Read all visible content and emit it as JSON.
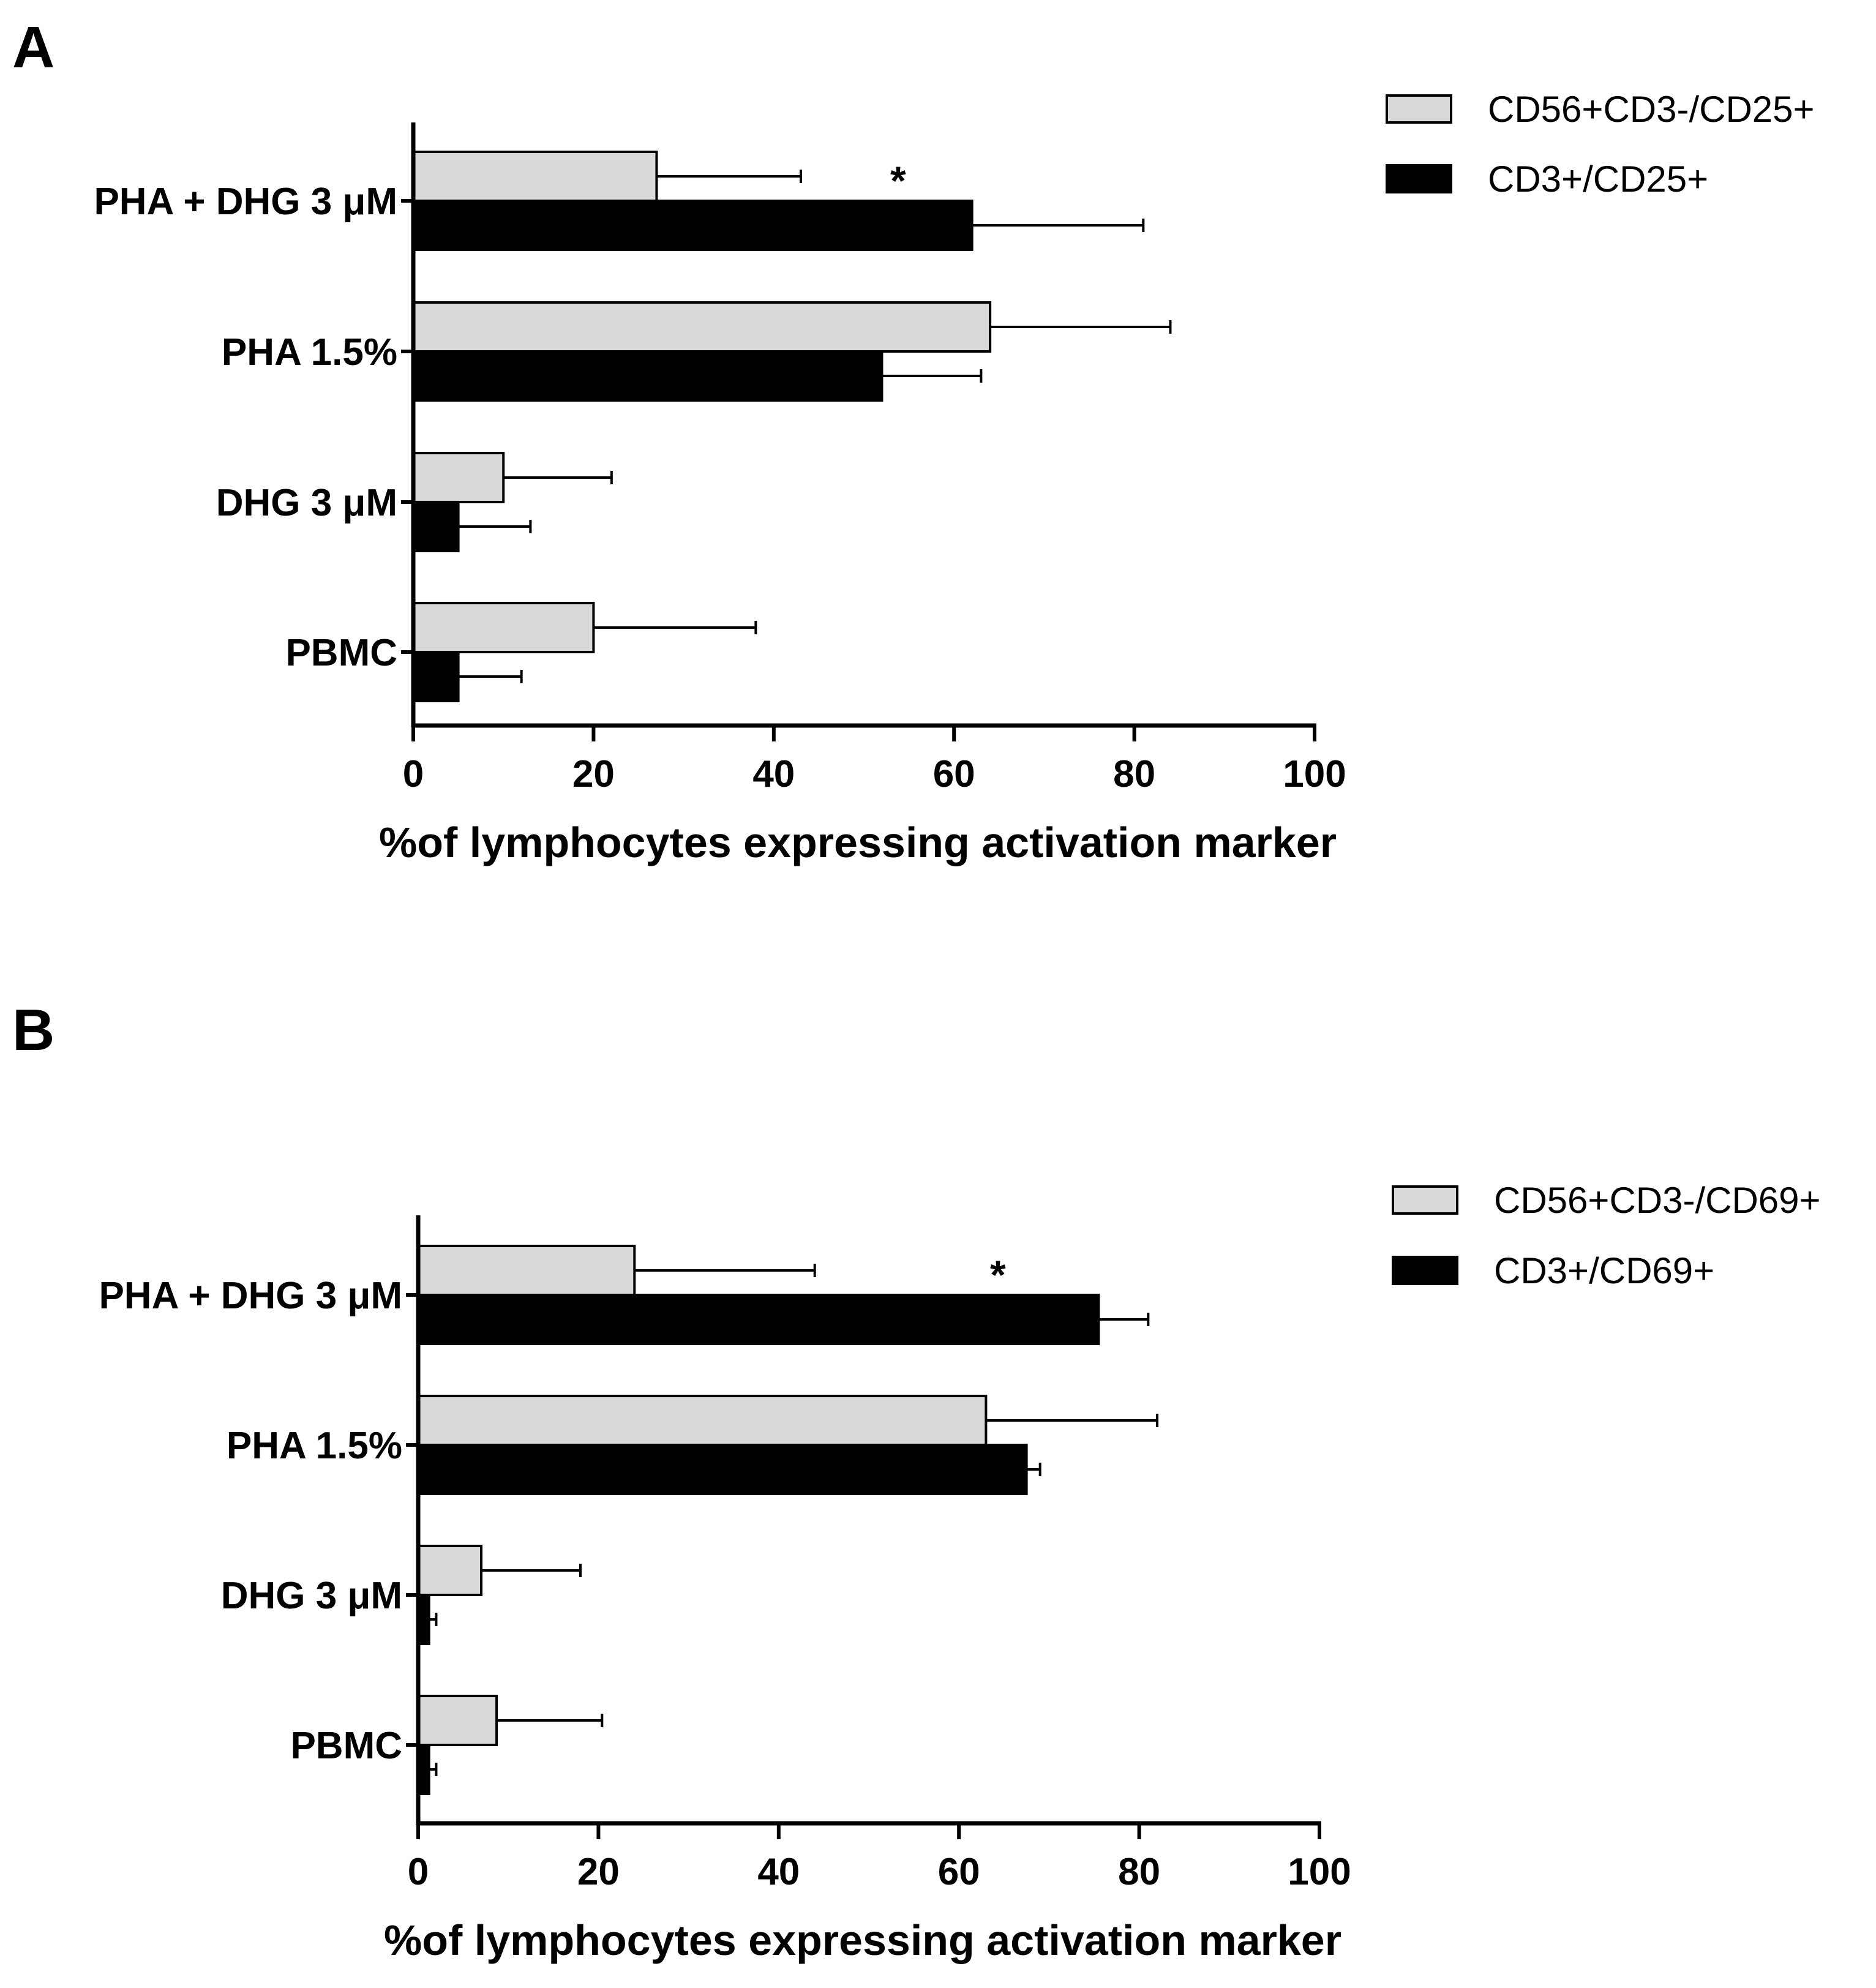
{
  "chart_data": [
    {
      "type": "bar",
      "orientation": "horizontal",
      "panel": "A",
      "categories": [
        "PHA + DHG 3 μM",
        "PHA 1.5%",
        "DHG 3 μM",
        "PBMC"
      ],
      "series": [
        {
          "name": "CD56+CD3-/CD25+",
          "color": "#d9d9d9",
          "values": [
            27,
            64,
            10,
            20
          ],
          "errors": [
            16,
            20,
            12,
            18
          ]
        },
        {
          "name": "CD3+/CD25+",
          "color": "#000000",
          "values": [
            62,
            52,
            5,
            5
          ],
          "errors": [
            19,
            11,
            8,
            7
          ]
        }
      ],
      "annotations": [
        {
          "category": "PHA + DHG 3 μM",
          "text": "*"
        }
      ],
      "xlabel": "%of lymphocytes expressing activation marker",
      "xlim": [
        0,
        100
      ],
      "xticks": [
        0,
        20,
        40,
        60,
        80,
        100
      ],
      "legend_position": "top-right"
    },
    {
      "type": "bar",
      "orientation": "horizontal",
      "panel": "B",
      "categories": [
        "PHA + DHG 3 μM",
        "PHA 1.5%",
        "DHG 3 μM",
        "PBMC"
      ],
      "series": [
        {
          "name": "CD56+CD3-/CD69+",
          "color": "#d9d9d9",
          "values": [
            24,
            63,
            7,
            8.7
          ],
          "errors": [
            20,
            19,
            11,
            11.7
          ]
        },
        {
          "name": "CD3+/CD69+",
          "color": "#000000",
          "values": [
            75.5,
            67.5,
            1.2,
            1.2
          ],
          "errors": [
            5.5,
            1.5,
            0.8,
            0.8
          ]
        }
      ],
      "annotations": [
        {
          "category": "PHA + DHG 3 μM",
          "text": "*"
        }
      ],
      "xlabel": "%of lymphocytes expressing activation marker",
      "xlim": [
        0,
        100
      ],
      "xticks": [
        0,
        20,
        40,
        60,
        80,
        100
      ],
      "legend_position": "top-right"
    }
  ]
}
